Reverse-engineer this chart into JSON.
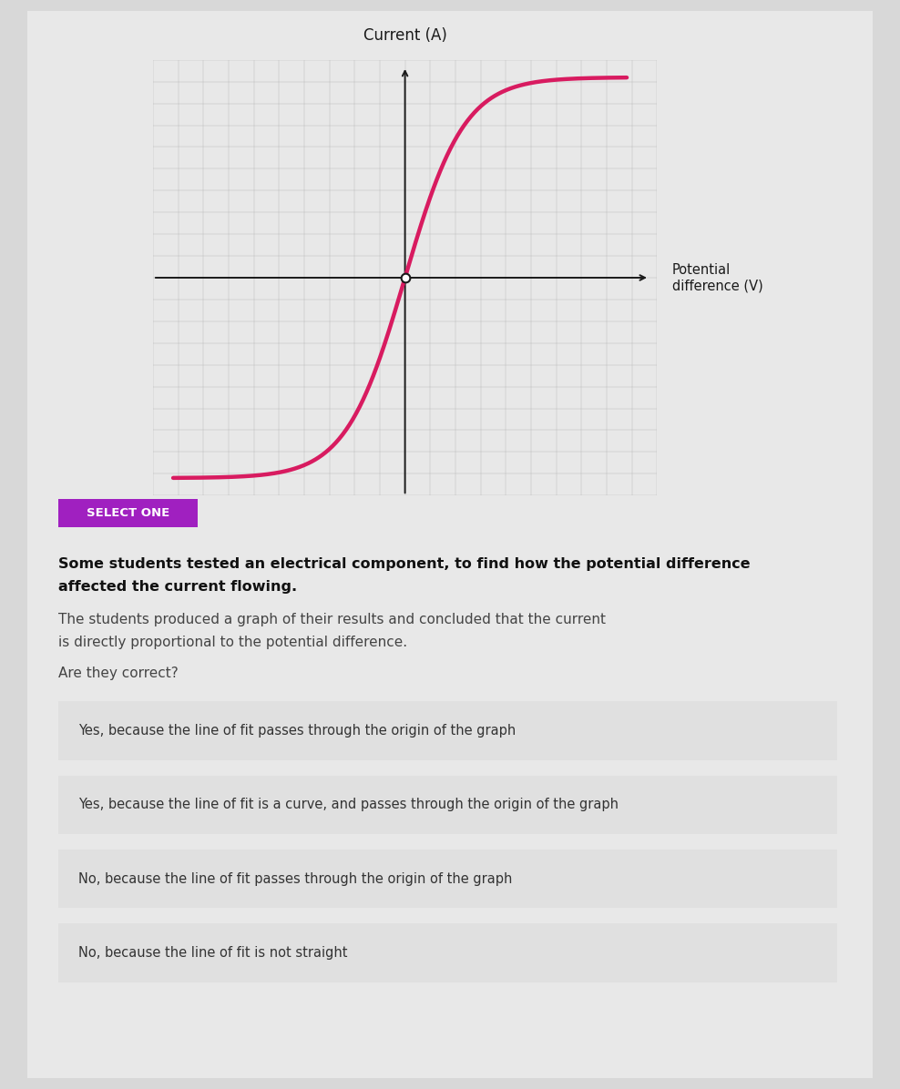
{
  "bg_color": "#d8d8d8",
  "page_bg": "#e8e8e8",
  "graph_title": "Current (A)",
  "graph_xlabel": "Potential\ndifference (V)",
  "curve_color": "#d81b60",
  "curve_linewidth": 3.2,
  "select_one_bg": "#a020c0",
  "select_one_text": "SELECT ONE",
  "select_one_color": "#ffffff",
  "bold_text_line1": "Some students tested an electrical component, to find how the potential difference",
  "bold_text_line2": "affected the current flowing.",
  "normal_text_line1": "The students produced a graph of their results and concluded that the current",
  "normal_text_line2": "is directly proportional to the potential difference.",
  "question_text": "Are they correct?",
  "options": [
    "Yes, because the line of fit passes through the origin of the graph",
    "Yes, because the line of fit is a curve, and passes through the origin of the graph",
    "No, because the line of fit passes through the origin of the graph",
    "No, because the line of fit is not straight"
  ],
  "option_bg": "#e0e0e0",
  "option_border": "#b090c0",
  "option_text_color": "#333333",
  "grid_color": "#bbbbbb",
  "axis_color": "#1a1a1a",
  "graph_bg": "#e8e8e8"
}
